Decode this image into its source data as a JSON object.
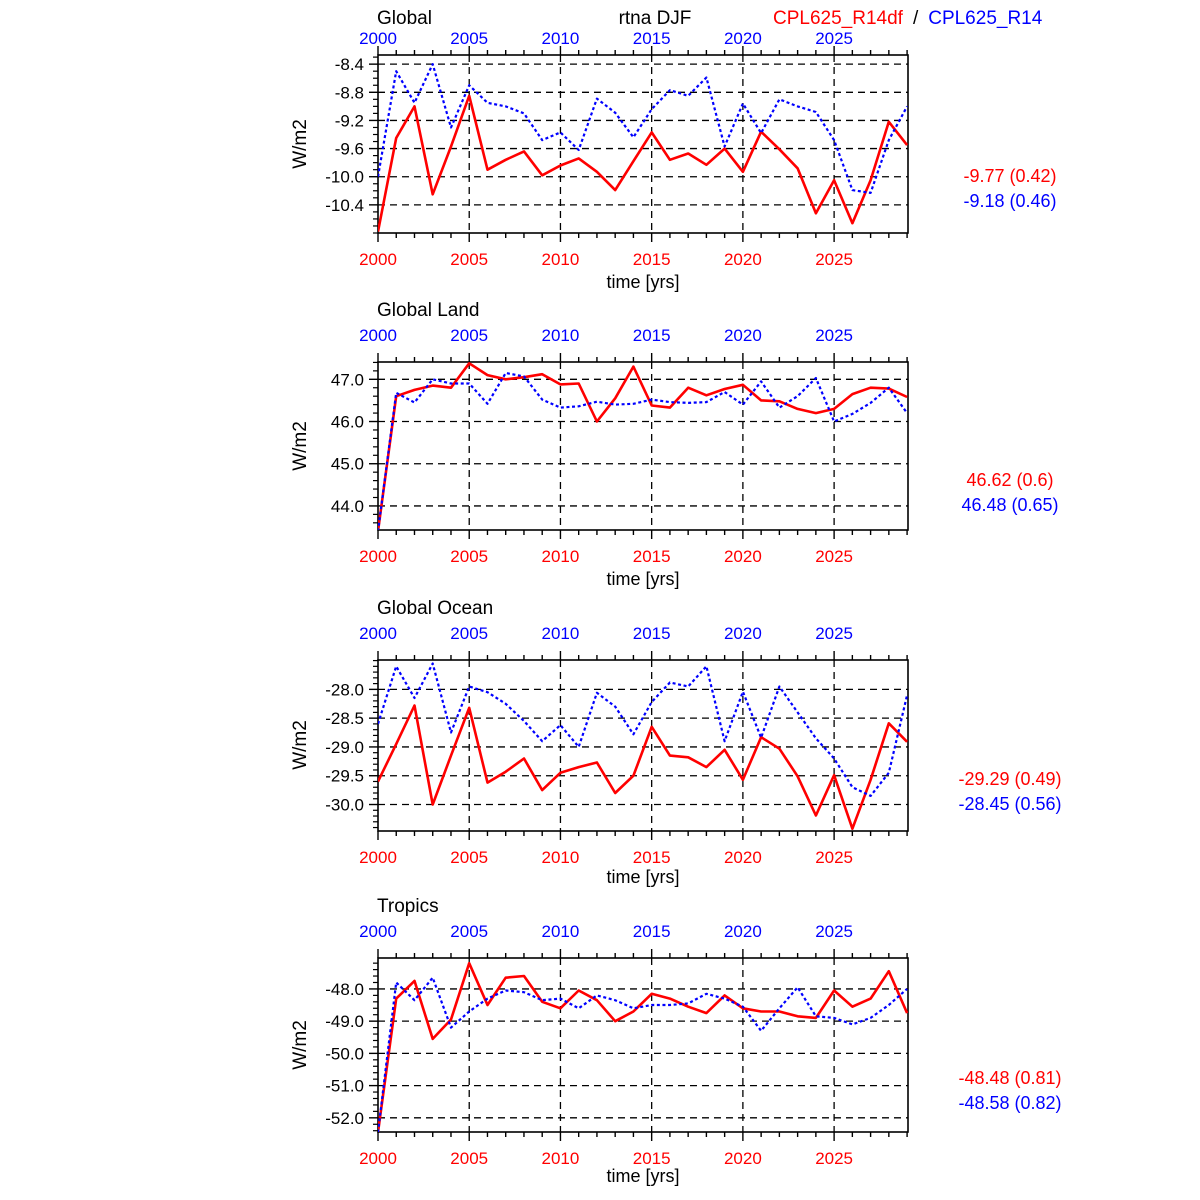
{
  "header": {
    "center_title": "rtna DJF",
    "legend": {
      "red_label": "CPL625_R14df",
      "separator": "/",
      "blue_label": "CPL625_R14"
    }
  },
  "colors": {
    "red": "#ff0000",
    "blue": "#0000ff",
    "axis": "#000000"
  },
  "chart_data": [
    {
      "type": "line",
      "title": "Global",
      "ylabel": "W/m2",
      "xlabel": "time [yrs]",
      "xlim": [
        2000,
        2029.05
      ],
      "xticks": [
        2000,
        2005,
        2010,
        2015,
        2020,
        2025
      ],
      "ylim": [
        -10.8,
        -8.27
      ],
      "ytick_vals": [
        -8.4,
        -8.8,
        -9.2,
        -9.6,
        -10.0,
        -10.4
      ],
      "ytick_labels": [
        "-8.4",
        "-8.8",
        "-9.2",
        "-9.6",
        "-10.0",
        "-10.4"
      ],
      "y_minor_step": 0.1,
      "grid": true,
      "stats_red": "-9.77 (0.42)",
      "stats_blue": "-9.18 (0.46)",
      "series": [
        {
          "name": "CPL625_R14df",
          "color": "red",
          "style": "solid",
          "values": [
            -10.78,
            -9.45,
            -9.0,
            -10.25,
            -9.57,
            -8.85,
            -9.9,
            -9.76,
            -9.64,
            -9.98,
            -9.84,
            -9.74,
            -9.93,
            -10.19,
            -9.78,
            -9.37,
            -9.76,
            -9.67,
            -9.83,
            -9.6,
            -9.93,
            -9.36,
            -9.61,
            -9.88,
            -10.52,
            -10.05,
            -10.66,
            -10.05,
            -9.22,
            -9.55
          ]
        },
        {
          "name": "CPL625_R14",
          "color": "blue",
          "style": "dotted",
          "values": [
            -10.0,
            -8.5,
            -8.95,
            -8.4,
            -9.3,
            -8.7,
            -8.95,
            -9.0,
            -9.1,
            -9.48,
            -9.37,
            -9.62,
            -8.89,
            -9.09,
            -9.44,
            -9.04,
            -8.77,
            -8.85,
            -8.59,
            -9.57,
            -8.96,
            -9.38,
            -8.9,
            -9.0,
            -9.08,
            -9.48,
            -10.19,
            -10.23,
            -9.48,
            -9.0
          ]
        }
      ]
    },
    {
      "type": "line",
      "title": "Global Land",
      "ylabel": "W/m2",
      "xlabel": "time [yrs]",
      "xlim": [
        2000,
        2029.05
      ],
      "xticks": [
        2000,
        2005,
        2010,
        2015,
        2020,
        2025
      ],
      "ylim": [
        43.43,
        47.41
      ],
      "ytick_vals": [
        47.0,
        46.0,
        45.0,
        44.0
      ],
      "ytick_labels": [
        "47.0",
        "46.0",
        "45.0",
        "44.0"
      ],
      "y_minor_step": 0.2,
      "grid": true,
      "stats_red": "46.62 (0.6)",
      "stats_blue": "46.48 (0.65)",
      "series": [
        {
          "name": "CPL625_R14df",
          "color": "red",
          "style": "solid",
          "values": [
            43.4,
            46.6,
            46.75,
            46.85,
            46.8,
            47.38,
            47.1,
            47.0,
            47.05,
            47.12,
            46.88,
            46.9,
            46.0,
            46.55,
            47.3,
            46.38,
            46.33,
            46.8,
            46.62,
            46.77,
            46.87,
            46.5,
            46.48,
            46.3,
            46.2,
            46.3,
            46.65,
            46.8,
            46.78,
            46.58
          ]
        },
        {
          "name": "CPL625_R14",
          "color": "blue",
          "style": "dotted",
          "values": [
            43.4,
            46.68,
            46.45,
            47.0,
            46.9,
            46.9,
            46.42,
            47.15,
            47.07,
            46.52,
            46.33,
            46.36,
            46.47,
            46.4,
            46.42,
            46.52,
            46.46,
            46.44,
            46.46,
            46.7,
            46.4,
            46.95,
            46.33,
            46.6,
            47.03,
            46.0,
            46.18,
            46.44,
            46.8,
            46.2
          ]
        }
      ]
    },
    {
      "type": "line",
      "title": "Global Ocean",
      "ylabel": "W/m2",
      "xlabel": "time [yrs]",
      "xlim": [
        2000,
        2029.05
      ],
      "xticks": [
        2000,
        2005,
        2010,
        2015,
        2020,
        2025
      ],
      "ylim": [
        -30.46,
        -27.49
      ],
      "ytick_vals": [
        -28.0,
        -28.5,
        -29.0,
        -29.5,
        -30.0
      ],
      "ytick_labels": [
        "-28.0",
        "-28.5",
        "-29.0",
        "-29.5",
        "-30.0"
      ],
      "y_minor_step": 0.1,
      "grid": true,
      "stats_red": "-29.29 (0.49)",
      "stats_blue": "-28.45 (0.56)",
      "series": [
        {
          "name": "CPL625_R14df",
          "color": "red",
          "style": "solid",
          "values": [
            -29.6,
            -28.95,
            -28.28,
            -30.0,
            -29.15,
            -28.32,
            -29.62,
            -29.43,
            -29.2,
            -29.75,
            -29.45,
            -29.35,
            -29.27,
            -29.8,
            -29.5,
            -28.65,
            -29.15,
            -29.18,
            -29.35,
            -29.05,
            -29.57,
            -28.83,
            -29.03,
            -29.51,
            -30.19,
            -29.49,
            -30.42,
            -29.57,
            -28.59,
            -28.91
          ]
        },
        {
          "name": "CPL625_R14",
          "color": "blue",
          "style": "dotted",
          "values": [
            -28.6,
            -27.6,
            -28.15,
            -27.55,
            -28.75,
            -27.95,
            -28.05,
            -28.25,
            -28.55,
            -28.9,
            -28.62,
            -29.0,
            -28.06,
            -28.3,
            -28.78,
            -28.22,
            -27.88,
            -27.95,
            -27.6,
            -28.9,
            -28.04,
            -28.84,
            -27.95,
            -28.4,
            -28.85,
            -29.2,
            -29.7,
            -29.85,
            -29.45,
            -28.1
          ]
        }
      ]
    },
    {
      "type": "line",
      "title": "Tropics",
      "ylabel": "W/m2",
      "xlabel": "time [yrs]",
      "xlim": [
        2000,
        2029.05
      ],
      "xticks": [
        2000,
        2005,
        2010,
        2015,
        2020,
        2025
      ],
      "ylim": [
        -52.44,
        -47.04
      ],
      "ytick_vals": [
        -48.0,
        -49.0,
        -50.0,
        -51.0,
        -52.0
      ],
      "ytick_labels": [
        "-48.0",
        "-49.0",
        "-50.0",
        "-51.0",
        "-52.0"
      ],
      "y_minor_step": 0.2,
      "grid": true,
      "stats_red": "-48.48 (0.81)",
      "stats_blue": "-48.58 (0.82)",
      "series": [
        {
          "name": "CPL625_R14df",
          "color": "red",
          "style": "solid",
          "values": [
            -52.45,
            -48.3,
            -47.75,
            -49.55,
            -48.95,
            -47.2,
            -48.5,
            -47.65,
            -47.6,
            -48.4,
            -48.6,
            -48.05,
            -48.35,
            -49.0,
            -48.7,
            -48.15,
            -48.3,
            -48.55,
            -48.75,
            -48.2,
            -48.6,
            -48.7,
            -48.7,
            -48.85,
            -48.9,
            -48.05,
            -48.55,
            -48.3,
            -47.45,
            -48.75
          ]
        },
        {
          "name": "CPL625_R14",
          "color": "blue",
          "style": "dotted",
          "values": [
            -52.45,
            -47.8,
            -48.35,
            -47.65,
            -49.2,
            -48.7,
            -48.3,
            -48.05,
            -48.1,
            -48.35,
            -48.3,
            -48.6,
            -48.2,
            -48.35,
            -48.6,
            -48.5,
            -48.5,
            -48.45,
            -48.15,
            -48.3,
            -48.55,
            -49.3,
            -48.6,
            -47.95,
            -48.85,
            -48.9,
            -49.1,
            -48.9,
            -48.5,
            -48.0
          ]
        }
      ]
    }
  ]
}
